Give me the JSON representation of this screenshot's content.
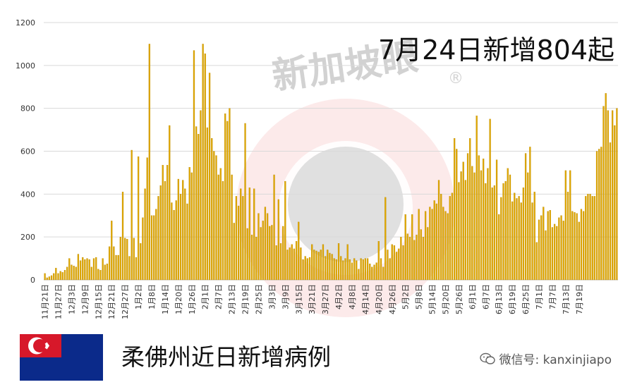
{
  "headline": "7月24日新增804起",
  "footer": {
    "title": "柔佛州近日新增病例",
    "wechat_label": "微信号: kanxinjiapo"
  },
  "watermark": {
    "text": "新加坡眼",
    "mark": "®"
  },
  "colors": {
    "bar": "#e0a800",
    "bar_edge": "#b58400",
    "grid": "#d9d9d9",
    "axis_text": "#333333",
    "flag_red": "#d7182a",
    "flag_blue": "#0b2a8a",
    "flag_white": "#ffffff"
  },
  "chart_data": {
    "type": "bar",
    "ylim": [
      0,
      1200
    ],
    "y_ticks": [
      0,
      200,
      400,
      600,
      800,
      1000,
      1200
    ],
    "grid": true,
    "legend": "none",
    "x_tick_labels": [
      "11月21日",
      "11月27日",
      "12月3日",
      "12月9日",
      "12月15日",
      "12月21日",
      "12月27日",
      "1月2日",
      "1月8日",
      "1月14日",
      "1月20日",
      "1月26日",
      "2月1日",
      "2月7日",
      "2月13日",
      "2月19日",
      "2月25日",
      "3月3日",
      "3月9日",
      "3月15日",
      "3月21日",
      "3月27日",
      "4月2日",
      "4月8日",
      "4月14日",
      "4月20日",
      "4月26日",
      "5月2日",
      "5月8日",
      "5月14日",
      "5月20日",
      "5月26日",
      "6月1日",
      "6月7日",
      "6月13日",
      "6月19日",
      "6月25日",
      "7月1日",
      "7月7日",
      "7月13日",
      "7月19日"
    ],
    "values": [
      30,
      10,
      15,
      20,
      30,
      55,
      30,
      40,
      35,
      45,
      60,
      100,
      70,
      65,
      60,
      120,
      90,
      105,
      95,
      100,
      95,
      60,
      100,
      105,
      50,
      45,
      100,
      70,
      75,
      155,
      275,
      155,
      115,
      115,
      200,
      410,
      195,
      190,
      110,
      605,
      195,
      105,
      575,
      170,
      290,
      425,
      570,
      1100,
      300,
      300,
      330,
      390,
      440,
      535,
      460,
      535,
      720,
      360,
      325,
      370,
      470,
      400,
      465,
      425,
      355,
      525,
      500,
      1070,
      715,
      680,
      790,
      1100,
      1055,
      710,
      965,
      660,
      600,
      580,
      490,
      520,
      460,
      775,
      740,
      800,
      490,
      265,
      390,
      345,
      425,
      390,
      730,
      240,
      430,
      210,
      425,
      200,
      310,
      245,
      275,
      340,
      310,
      250,
      255,
      490,
      160,
      375,
      170,
      250,
      460,
      140,
      150,
      165,
      145,
      180,
      270,
      150,
      95,
      110,
      100,
      105,
      165,
      140,
      135,
      130,
      140,
      165,
      110,
      140,
      125,
      120,
      100,
      95,
      170,
      110,
      90,
      100,
      165,
      95,
      80,
      100,
      90,
      50,
      100,
      95,
      100,
      100,
      75,
      60,
      70,
      80,
      180,
      100,
      60,
      385,
      140,
      100,
      165,
      160,
      130,
      145,
      200,
      160,
      305,
      215,
      200,
      305,
      185,
      210,
      330,
      235,
      200,
      320,
      245,
      340,
      330,
      370,
      355,
      465,
      400,
      340,
      320,
      310,
      390,
      405,
      660,
      610,
      455,
      505,
      550,
      465,
      590,
      660,
      530,
      500,
      765,
      580,
      510,
      565,
      450,
      520,
      750,
      430,
      440,
      560,
      305,
      385,
      450,
      460,
      520,
      490,
      365,
      405,
      380,
      390,
      360,
      430,
      590,
      500,
      620,
      360,
      410,
      175,
      280,
      300,
      340,
      230,
      320,
      325,
      245,
      260,
      250,
      290,
      300,
      275,
      510,
      410,
      510,
      320,
      315,
      310,
      270,
      330,
      320,
      390,
      400,
      400,
      390,
      390,
      600,
      610,
      620,
      810,
      870,
      790,
      640,
      790,
      720,
      800
    ]
  }
}
